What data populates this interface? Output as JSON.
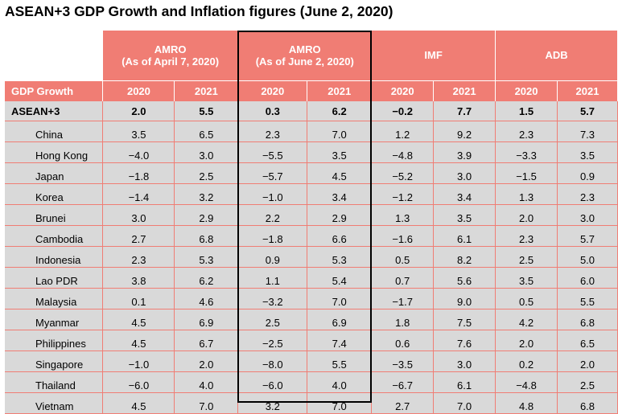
{
  "title": "ASEAN+3 GDP Growth and Inflation figures (June 2, 2020)",
  "row_header_label": "GDP Growth",
  "groups": [
    {
      "line1": "AMRO",
      "line2": "(As of April 7, 2020)"
    },
    {
      "line1": "AMRO",
      "line2": "(As of June 2, 2020)"
    },
    {
      "line1": "IMF",
      "line2": ""
    },
    {
      "line1": "ADB",
      "line2": ""
    }
  ],
  "years": [
    "2020",
    "2021",
    "2020",
    "2021",
    "2020",
    "2021",
    "2020",
    "2021"
  ],
  "rows": [
    {
      "name": "ASEAN+3",
      "v": [
        "2.0",
        "5.5",
        "0.3",
        "6.2",
        "−0.2",
        "7.7",
        "1.5",
        "5.7"
      ]
    },
    {
      "name": "China",
      "v": [
        "3.5",
        "6.5",
        "2.3",
        "7.0",
        "1.2",
        "9.2",
        "2.3",
        "7.3"
      ]
    },
    {
      "name": "Hong Kong",
      "v": [
        "−4.0",
        "3.0",
        "−5.5",
        "3.5",
        "−4.8",
        "3.9",
        "−3.3",
        "3.5"
      ]
    },
    {
      "name": "Japan",
      "v": [
        "−1.8",
        "2.5",
        "−5.7",
        "4.5",
        "−5.2",
        "3.0",
        "−1.5",
        "0.9"
      ]
    },
    {
      "name": "Korea",
      "v": [
        "−1.4",
        "3.2",
        "−1.0",
        "3.4",
        "−1.2",
        "3.4",
        "1.3",
        "2.3"
      ]
    },
    {
      "name": "Brunei",
      "v": [
        "3.0",
        "2.9",
        "2.2",
        "2.9",
        "1.3",
        "3.5",
        "2.0",
        "3.0"
      ]
    },
    {
      "name": "Cambodia",
      "v": [
        "2.7",
        "6.8",
        "−1.8",
        "6.6",
        "−1.6",
        "6.1",
        "2.3",
        "5.7"
      ]
    },
    {
      "name": "Indonesia",
      "v": [
        "2.3",
        "5.3",
        "0.9",
        "5.3",
        "0.5",
        "8.2",
        "2.5",
        "5.0"
      ]
    },
    {
      "name": "Lao PDR",
      "v": [
        "3.8",
        "6.2",
        "1.1",
        "5.4",
        "0.7",
        "5.6",
        "3.5",
        "6.0"
      ]
    },
    {
      "name": "Malaysia",
      "v": [
        "0.1",
        "4.6",
        "−3.2",
        "7.0",
        "−1.7",
        "9.0",
        "0.5",
        "5.5"
      ]
    },
    {
      "name": "Myanmar",
      "v": [
        "4.5",
        "6.9",
        "2.5",
        "6.9",
        "1.8",
        "7.5",
        "4.2",
        "6.8"
      ]
    },
    {
      "name": "Philippines",
      "v": [
        "4.5",
        "6.7",
        "−2.5",
        "7.4",
        "0.6",
        "7.6",
        "2.0",
        "6.5"
      ]
    },
    {
      "name": "Singapore",
      "v": [
        "−1.0",
        "2.0",
        "−8.0",
        "5.5",
        "−3.5",
        "3.0",
        "0.2",
        "2.0"
      ]
    },
    {
      "name": "Thailand",
      "v": [
        "−6.0",
        "4.0",
        "−6.0",
        "4.0",
        "−6.7",
        "6.1",
        "−4.8",
        "2.5"
      ]
    },
    {
      "name": "Vietnam",
      "v": [
        "4.5",
        "7.0",
        "3.2",
        "7.0",
        "2.7",
        "7.0",
        "4.8",
        "6.8"
      ]
    }
  ]
}
